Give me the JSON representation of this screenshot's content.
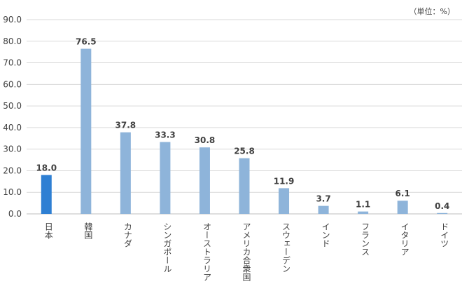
{
  "chart_data": {
    "type": "bar",
    "unit_note": "（単位：%）",
    "categories": [
      "日本",
      "韓国",
      "カナダ",
      "シンガポール",
      "オーストラリア",
      "アメリカ合衆国",
      "スウェーデン",
      "インド",
      "フランス",
      "イタリア",
      "ドイツ"
    ],
    "values": [
      18.0,
      76.5,
      37.8,
      33.3,
      30.8,
      25.8,
      11.9,
      3.7,
      1.1,
      6.1,
      0.4
    ],
    "value_labels": [
      "18.0",
      "76.5",
      "37.8",
      "33.3",
      "30.8",
      "25.8",
      "11.9",
      "3.7",
      "1.1",
      "6.1",
      "0.4"
    ],
    "ylim": [
      0,
      90
    ],
    "yticks": [
      "0.0",
      "10.0",
      "20.0",
      "30.0",
      "40.0",
      "50.0",
      "60.0",
      "70.0",
      "80.0",
      "90.0"
    ],
    "grid": true,
    "highlight_color": "#2E7FD3",
    "bar_color": "#8EB4DA",
    "title": "",
    "xlabel": "",
    "ylabel": ""
  }
}
